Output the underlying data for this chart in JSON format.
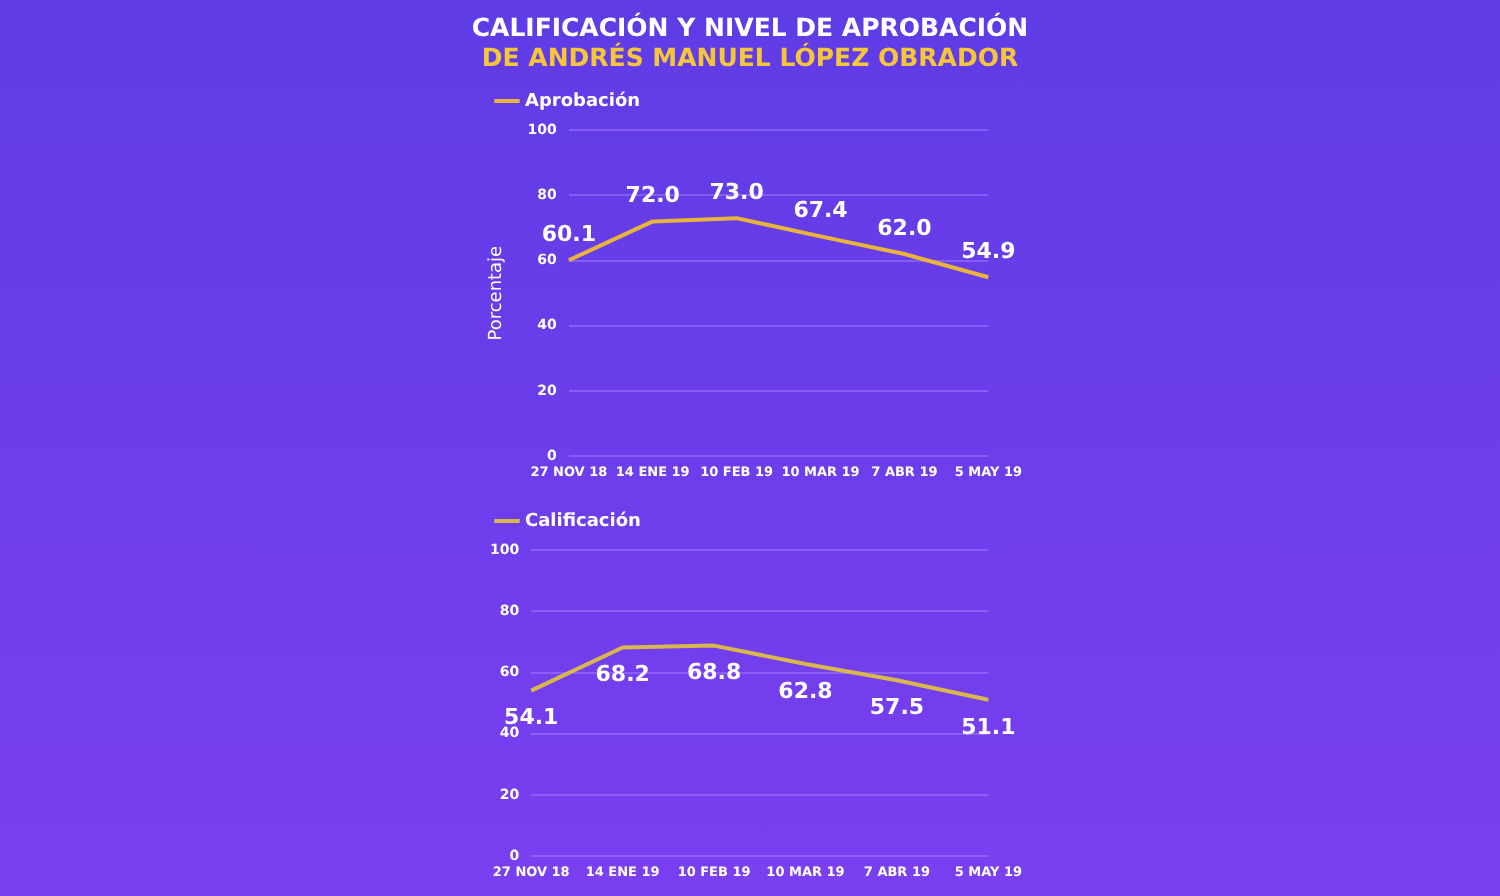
{
  "chart_data": [
    {
      "type": "line",
      "title": "CALIFICACIÓN Y NIVEL DE APROBACIÓN",
      "subtitle": "DE ANDRÉS MANUEL LÓPEZ OBRADOR",
      "ylabel": "Porcentaje",
      "categories": [
        "27 NOV 18",
        "14 ENE 19",
        "10 FEB 19",
        "10 MAR 19",
        "7 ABR 19",
        "5 MAY 19"
      ],
      "series": [
        {
          "name": "Aprobación",
          "color": "#e8b43c",
          "values": [
            60.1,
            72.0,
            73.0,
            67.4,
            62.0,
            54.9
          ],
          "value_labels": [
            "60.1",
            "72.0",
            "73.0",
            "67.4",
            "62.0",
            "54.9"
          ]
        }
      ],
      "ylim": [
        0,
        100
      ],
      "yticks": [
        0,
        20,
        40,
        60,
        80,
        100
      ],
      "grid": "y",
      "legend": "top left",
      "marker": "none"
    },
    {
      "type": "line",
      "categories": [
        "27 NOV 18",
        "14 ENE 19",
        "10 FEB 19",
        "10 MAR 19",
        "7 ABR 19",
        "5 MAY 19"
      ],
      "series": [
        {
          "name": "Calificación",
          "color": "#d8b84c",
          "values": [
            54.1,
            68.2,
            68.8,
            62.8,
            57.5,
            51.1
          ],
          "value_labels": [
            "54.1",
            "68.2",
            "68.8",
            "62.8",
            "57.5",
            "51.1"
          ]
        }
      ],
      "ylim": [
        0,
        100
      ],
      "yticks": [
        0,
        20,
        40,
        60,
        80,
        100
      ],
      "grid": "y",
      "legend": "top left",
      "marker": "none"
    }
  ]
}
